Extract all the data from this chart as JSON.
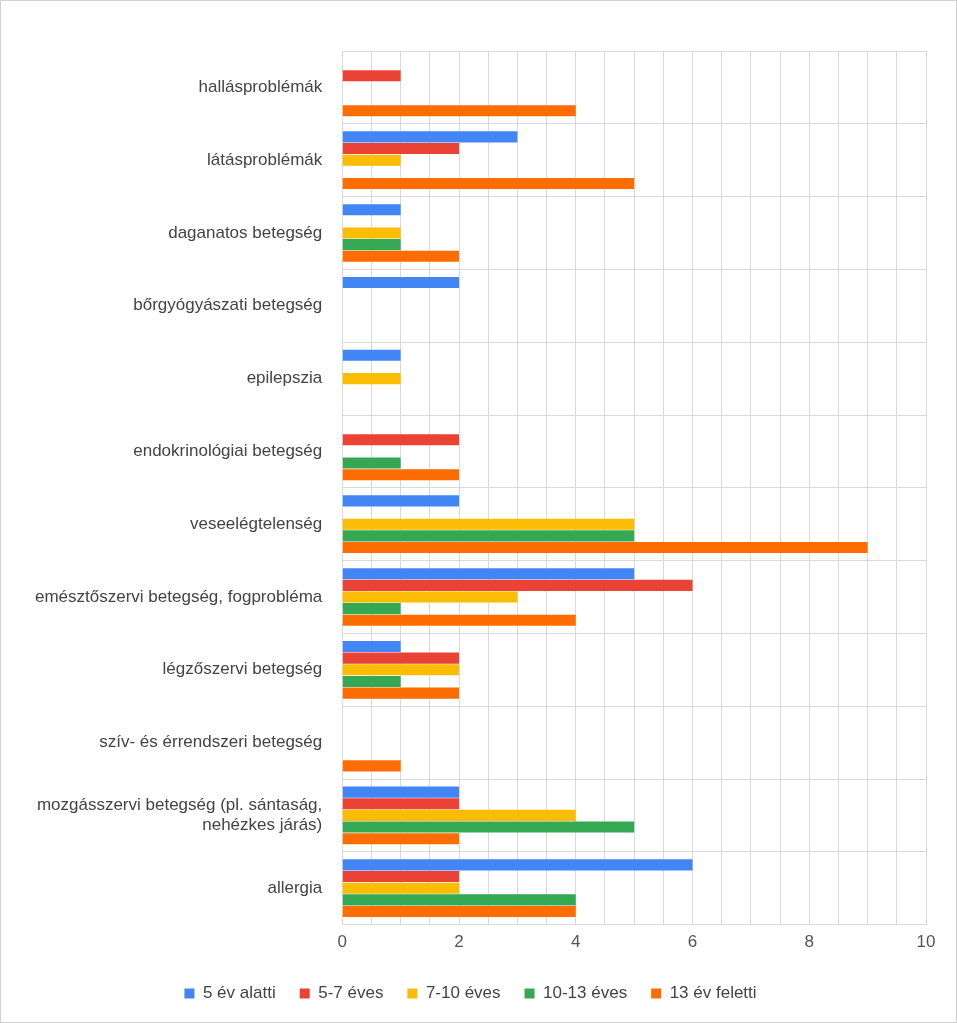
{
  "chart_data": {
    "type": "bar",
    "orientation": "horizontal",
    "categories": [
      "hallásproblémák",
      "látásproblémák",
      "daganatos betegség",
      "bőrgyógyászati betegség",
      "epilepszia",
      "endokrinológiai betegség",
      "veseelégtelenség",
      "emésztőszervi betegség, fogprobléma",
      "légzőszervi betegség",
      "szív- és érrendszeri betegség",
      "mozgásszervi betegség (pl. sántaság, nehézkes járás)",
      "allergia"
    ],
    "series": [
      {
        "name": "5 év alatti",
        "color": "#4285f4",
        "values": [
          null,
          3,
          1,
          2,
          1,
          null,
          2,
          5,
          1,
          null,
          2,
          6
        ]
      },
      {
        "name": "5-7 éves",
        "color": "#ea4335",
        "values": [
          1,
          2,
          null,
          null,
          null,
          2,
          null,
          6,
          2,
          null,
          2,
          2
        ]
      },
      {
        "name": "7-10 éves",
        "color": "#fbbc04",
        "values": [
          null,
          1,
          1,
          null,
          1,
          null,
          5,
          3,
          2,
          null,
          4,
          2
        ]
      },
      {
        "name": "10-13 éves",
        "color": "#34a853",
        "values": [
          null,
          null,
          1,
          null,
          null,
          1,
          5,
          1,
          1,
          null,
          5,
          4
        ]
      },
      {
        "name": "13 év feletti",
        "color": "#ff6d01",
        "values": [
          4,
          5,
          2,
          null,
          null,
          2,
          9,
          4,
          2,
          1,
          2,
          4
        ]
      }
    ],
    "xlim": [
      0,
      10
    ],
    "xticks": [
      0,
      {
        "value": 0.5,
        "label": null
      },
      {
        "value": 1,
        "label": null
      },
      {
        "value": 1.5,
        "label": null
      },
      2,
      {
        "value": 2.5,
        "label": null
      },
      {
        "value": 3,
        "label": null
      },
      {
        "value": 3.5,
        "label": null
      },
      4,
      {
        "value": 4.5,
        "label": null
      },
      {
        "value": 5,
        "label": null
      },
      {
        "value": 5.5,
        "label": null
      },
      6,
      {
        "value": 6.5,
        "label": null
      },
      {
        "value": 7,
        "label": null
      },
      {
        "value": 7.5,
        "label": null
      },
      8,
      {
        "value": 8.5,
        "label": null
      },
      {
        "value": 9,
        "label": null
      },
      {
        "value": 9.5,
        "label": null
      },
      10
    ],
    "grid": true,
    "legend": "bottom"
  }
}
